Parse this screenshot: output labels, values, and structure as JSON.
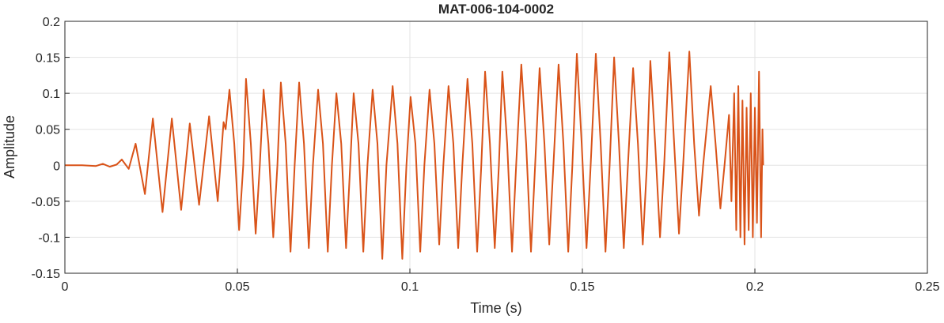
{
  "chart_data": {
    "type": "line",
    "title": "MAT-006-104-0002",
    "xlabel": "Time (s)",
    "ylabel": "Amplitude",
    "color": "#d95319",
    "grid": true,
    "xlim": [
      0,
      0.25
    ],
    "xticks": [
      0,
      0.05,
      0.1,
      0.15,
      0.2,
      0.25
    ],
    "ylim": [
      -0.15,
      0.2
    ],
    "yticks": [
      -0.15,
      -0.1,
      -0.05,
      0,
      0.05,
      0.1,
      0.15,
      0.2
    ],
    "x": [
      0,
      0.005,
      0.009,
      0.011,
      0.013,
      0.015,
      0.0165,
      0.0185,
      0.0205,
      0.0232,
      0.0255,
      0.0283,
      0.031,
      0.0337,
      0.0362,
      0.0389,
      0.0418,
      0.0443,
      0.046,
      0.0466,
      0.0477,
      0.0491,
      0.0505,
      0.0517,
      0.0525,
      0.0539,
      0.0553,
      0.0565,
      0.0576,
      0.059,
      0.0604,
      0.0616,
      0.0626,
      0.064,
      0.0654,
      0.0666,
      0.0679,
      0.0693,
      0.0707,
      0.0719,
      0.0734,
      0.0748,
      0.0762,
      0.0774,
      0.0787,
      0.0801,
      0.0815,
      0.0827,
      0.0837,
      0.0851,
      0.0865,
      0.0877,
      0.0892,
      0.0906,
      0.092,
      0.0932,
      0.095,
      0.0964,
      0.0978,
      0.099,
      0.1002,
      0.1016,
      0.103,
      0.1042,
      0.1057,
      0.1071,
      0.1085,
      0.1097,
      0.1112,
      0.1126,
      0.114,
      0.1152,
      0.1167,
      0.1181,
      0.1195,
      0.1207,
      0.1218,
      0.1232,
      0.1246,
      0.1258,
      0.1268,
      0.1282,
      0.1296,
      0.1308,
      0.1323,
      0.1337,
      0.1351,
      0.1363,
      0.1376,
      0.139,
      0.1404,
      0.1416,
      0.1431,
      0.1445,
      0.1459,
      0.1471,
      0.1484,
      0.1498,
      0.1512,
      0.1524,
      0.1539,
      0.1553,
      0.1567,
      0.1579,
      0.1592,
      0.1606,
      0.162,
      0.1632,
      0.1647,
      0.1661,
      0.1675,
      0.1687,
      0.1697,
      0.1711,
      0.1725,
      0.1737,
      0.1752,
      0.1766,
      0.178,
      0.1792,
      0.181,
      0.1824,
      0.1838,
      0.185,
      0.1872,
      0.1886,
      0.19,
      0.1912,
      0.1925,
      0.1932,
      0.194,
      0.1946,
      0.1952,
      0.1958,
      0.1964,
      0.197,
      0.1976,
      0.1982,
      0.1988,
      0.1994,
      0.2,
      0.2006,
      0.2012,
      0.2018,
      0.2022,
      0.2024
    ],
    "values": [
      0,
      0,
      -0.001,
      0.002,
      -0.002,
      0.001,
      0.008,
      -0.005,
      0.03,
      -0.04,
      0.065,
      -0.065,
      0.065,
      -0.062,
      0.058,
      -0.055,
      0.068,
      -0.05,
      0.06,
      0.05,
      0.105,
      0.03,
      -0.09,
      0,
      0.12,
      0.03,
      -0.095,
      0,
      0.105,
      0.03,
      -0.1,
      0,
      0.115,
      0.03,
      -0.12,
      0,
      0.115,
      0.03,
      -0.115,
      0,
      0.105,
      0.03,
      -0.12,
      0,
      0.1,
      0.03,
      -0.115,
      0,
      0.1,
      0.03,
      -0.12,
      0,
      0.105,
      0.03,
      -0.13,
      0,
      0.11,
      0.03,
      -0.13,
      0,
      0.095,
      0.03,
      -0.12,
      0,
      0.105,
      0.03,
      -0.11,
      0,
      0.11,
      0.03,
      -0.115,
      0,
      0.12,
      0.03,
      -0.12,
      0,
      0.13,
      0.03,
      -0.115,
      0,
      0.13,
      0.03,
      -0.12,
      0,
      0.14,
      0.03,
      -0.12,
      0,
      0.135,
      0.03,
      -0.11,
      0,
      0.14,
      0.03,
      -0.12,
      0,
      0.155,
      0.03,
      -0.115,
      0,
      0.155,
      0.03,
      -0.12,
      0,
      0.15,
      0.03,
      -0.115,
      0,
      0.135,
      0.03,
      -0.11,
      0,
      0.145,
      0.03,
      -0.1,
      0,
      0.157,
      0.03,
      -0.095,
      0,
      0.158,
      0.03,
      -0.07,
      0,
      0.11,
      0.03,
      -0.06,
      0,
      0.07,
      -0.05,
      0.1,
      -0.09,
      0.11,
      -0.1,
      0.09,
      -0.11,
      0.08,
      -0.09,
      0.1,
      -0.1,
      0.08,
      -0.08,
      0.13,
      -0.1,
      0.05,
      0
    ]
  }
}
